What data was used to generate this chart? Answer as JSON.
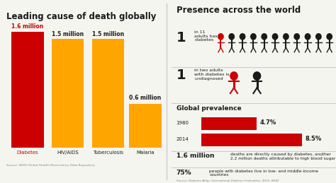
{
  "title_left": "Leading cause of death globally",
  "title_right": "Presence across the world",
  "bar_categories": [
    "Diabetes",
    "HIV/AIDS",
    "Tuberculosis",
    "Malaria"
  ],
  "bar_values": [
    1.6,
    1.5,
    1.5,
    0.6
  ],
  "bar_labels": [
    "1.6 million",
    "1.5 million",
    "1.5 million",
    "0.6 million"
  ],
  "bar_colors": [
    "#cc0000",
    "#FFA500",
    "#FFA500",
    "#FFA500"
  ],
  "source_left": "Source: WHO Global Health Observatory Data Repository",
  "source_right": "Source: Diabetes Atlas, International Diabetes Federation, 2015, WHO",
  "stat1_text": "in 11\nadults has\ndiabetes",
  "stat2_text": "in two adults\nwith diabetes is\nundiagnosed",
  "prevalence_title": "Global prevalence",
  "prevalence_years": [
    "1980",
    "2014"
  ],
  "prevalence_values": [
    4.7,
    8.5
  ],
  "prevalence_labels": [
    "4.7%",
    "8.5%"
  ],
  "stat3_bold": "1.6 million",
  "stat3_text": "deaths are directly caused by diabetes, another\n2.2 million deaths attributable to high blood sugar",
  "stat4_bold": "75%",
  "stat4_text": "people with diabetes live in low- and middle-income\ncountries",
  "bg_color": "#f5f5f0",
  "divider_color": "#cccccc",
  "red_color": "#cc0000",
  "orange_color": "#FFA500",
  "black_color": "#1a1a1a"
}
